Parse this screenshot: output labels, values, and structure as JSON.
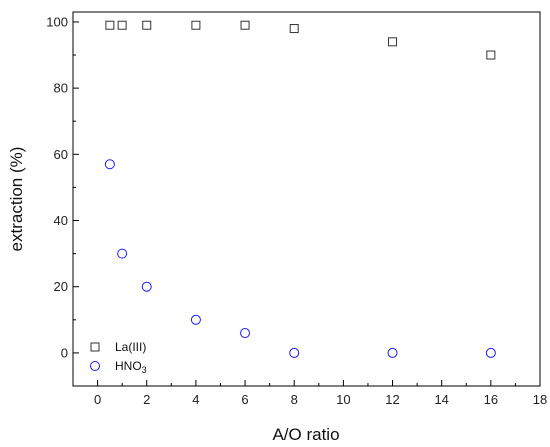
{
  "chart_data": {
    "type": "scatter",
    "xlabel": "A/O ratio",
    "ylabel": "extraction (%)",
    "xlim": [
      -1,
      18
    ],
    "ylim": [
      -10,
      103
    ],
    "xticks": [
      0,
      2,
      4,
      6,
      8,
      10,
      12,
      14,
      16,
      18
    ],
    "yticks": [
      0,
      20,
      40,
      60,
      80,
      100
    ],
    "grid": false,
    "legend_position": "bottom-left",
    "series": [
      {
        "name": "La(III)",
        "marker": "square",
        "color": "#333333",
        "x": [
          0.5,
          1,
          2,
          4,
          6,
          8,
          12,
          16
        ],
        "y": [
          99,
          99,
          99,
          99,
          99,
          98,
          94,
          90
        ]
      },
      {
        "name": "HNO3",
        "marker": "circle",
        "color": "#1a1aff",
        "x": [
          0.5,
          1,
          2,
          4,
          6,
          8,
          12,
          16
        ],
        "y": [
          57,
          30,
          20,
          10,
          6,
          0,
          0,
          0
        ]
      }
    ]
  }
}
